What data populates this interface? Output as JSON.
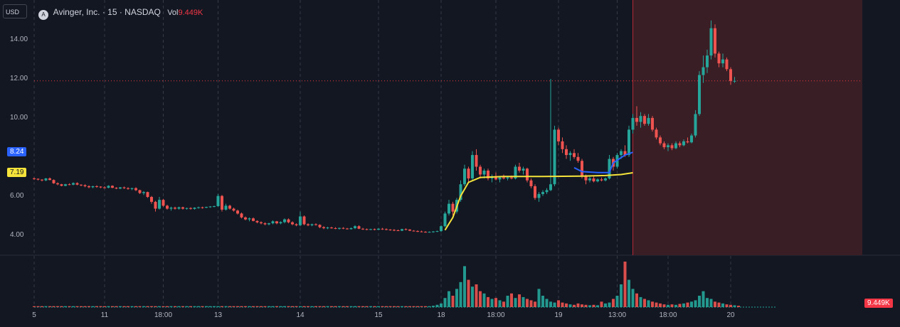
{
  "header": {
    "currency": "USD",
    "logo_letter": "A",
    "symbol_line": "Avinger, Inc. · 15 · NASDAQ",
    "vol_label": "Vol",
    "vol_value": "9.449K"
  },
  "colors": {
    "background": "#131722",
    "up": "#26a69a",
    "down": "#ef5350",
    "vwap_yellow": "#f5e33b",
    "vwap_blue": "#2962ff",
    "session_shade": "#3a1e26",
    "price_line": "#f23645"
  },
  "price_badges": [
    {
      "label": "8.24",
      "value": 8.24,
      "color": "#2962ff",
      "text_color": "#ffffff"
    },
    {
      "label": "7.19",
      "value": 7.19,
      "color": "#f5e33b",
      "text_color": "#131722"
    }
  ],
  "volume_badge": {
    "label": "9.449K",
    "color": "#f23645"
  },
  "chart_data": {
    "type": "candlestick",
    "price_axis": {
      "ticks": [
        "14.00",
        "12.00",
        "10.00",
        "6.00",
        "4.00"
      ],
      "ylim": [
        3.0,
        15.5
      ]
    },
    "time_axis": {
      "ticks": [
        {
          "label": "5",
          "i": 0
        },
        {
          "label": "11",
          "i": 18
        },
        {
          "label": "18:00",
          "i": 33
        },
        {
          "label": "13",
          "i": 47
        },
        {
          "label": "14",
          "i": 68
        },
        {
          "label": "15",
          "i": 88
        },
        {
          "label": "18",
          "i": 104
        },
        {
          "label": "18:00",
          "i": 118
        },
        {
          "label": "19",
          "i": 134
        },
        {
          "label": "13:00",
          "i": 149
        },
        {
          "label": "18:00",
          "i": 162
        },
        {
          "label": "20",
          "i": 178
        }
      ]
    },
    "current_price": 11.9,
    "extended_hours_start_index": 153,
    "series_vwap_yellow": [
      [
        105,
        4.25
      ],
      [
        107,
        4.9
      ],
      [
        109,
        6.0
      ],
      [
        111,
        6.7
      ],
      [
        114,
        6.95
      ],
      [
        120,
        7.0
      ],
      [
        130,
        7.0
      ],
      [
        140,
        7.02
      ],
      [
        146,
        7.05
      ],
      [
        150,
        7.1
      ],
      [
        153,
        7.19
      ]
    ],
    "series_vwap_blue": [
      [
        138,
        7.45
      ],
      [
        140,
        7.25
      ],
      [
        144,
        7.2
      ],
      [
        147,
        7.2
      ],
      [
        148,
        7.7
      ],
      [
        151,
        8.1
      ],
      [
        153,
        8.24
      ]
    ],
    "candles": [
      [
        6.9,
        6.95,
        6.82,
        6.88
      ],
      [
        6.88,
        6.9,
        6.8,
        6.84
      ],
      [
        6.84,
        6.86,
        6.75,
        6.8
      ],
      [
        6.8,
        6.92,
        6.76,
        6.9
      ],
      [
        6.9,
        6.95,
        6.8,
        6.82
      ],
      [
        6.82,
        6.85,
        6.62,
        6.65
      ],
      [
        6.65,
        6.7,
        6.55,
        6.6
      ],
      [
        6.6,
        6.62,
        6.5,
        6.52
      ],
      [
        6.52,
        6.62,
        6.5,
        6.6
      ],
      [
        6.6,
        6.65,
        6.55,
        6.58
      ],
      [
        6.58,
        6.7,
        6.55,
        6.66
      ],
      [
        6.66,
        6.7,
        6.55,
        6.58
      ],
      [
        6.58,
        6.6,
        6.5,
        6.55
      ],
      [
        6.55,
        6.6,
        6.45,
        6.5
      ],
      [
        6.5,
        6.55,
        6.4,
        6.45
      ],
      [
        6.45,
        6.52,
        6.4,
        6.5
      ],
      [
        6.5,
        6.55,
        6.42,
        6.48
      ],
      [
        6.48,
        6.5,
        6.4,
        6.44
      ],
      [
        6.44,
        6.5,
        6.38,
        6.42
      ],
      [
        6.42,
        6.55,
        6.4,
        6.52
      ],
      [
        6.52,
        6.55,
        6.4,
        6.42
      ],
      [
        6.42,
        6.45,
        6.35,
        6.38
      ],
      [
        6.38,
        6.46,
        6.35,
        6.44
      ],
      [
        6.44,
        6.48,
        6.36,
        6.4
      ],
      [
        6.4,
        6.45,
        6.32,
        6.36
      ],
      [
        6.36,
        6.42,
        6.3,
        6.4
      ],
      [
        6.4,
        6.45,
        6.25,
        6.3
      ],
      [
        6.3,
        6.32,
        6.1,
        6.15
      ],
      [
        6.15,
        6.25,
        6.05,
        6.2
      ],
      [
        6.2,
        6.22,
        5.9,
        5.95
      ],
      [
        5.95,
        6.0,
        5.6,
        5.7
      ],
      [
        5.7,
        5.75,
        5.2,
        5.35
      ],
      [
        5.35,
        5.95,
        5.3,
        5.8
      ],
      [
        5.8,
        5.85,
        5.45,
        5.5
      ],
      [
        5.5,
        5.55,
        5.3,
        5.35
      ],
      [
        5.35,
        5.45,
        5.25,
        5.4
      ],
      [
        5.4,
        5.45,
        5.3,
        5.35
      ],
      [
        5.35,
        5.45,
        5.3,
        5.42
      ],
      [
        5.42,
        5.45,
        5.3,
        5.35
      ],
      [
        5.35,
        5.4,
        5.3,
        5.38
      ],
      [
        5.38,
        5.42,
        5.3,
        5.34
      ],
      [
        5.34,
        5.42,
        5.3,
        5.4
      ],
      [
        5.4,
        5.45,
        5.35,
        5.42
      ],
      [
        5.42,
        5.45,
        5.35,
        5.4
      ],
      [
        5.4,
        5.45,
        5.38,
        5.44
      ],
      [
        5.44,
        5.48,
        5.4,
        5.46
      ],
      [
        5.46,
        5.5,
        5.42,
        5.48
      ],
      [
        5.48,
        6.1,
        5.45,
        6.0
      ],
      [
        6.0,
        6.05,
        5.2,
        5.3
      ],
      [
        5.3,
        5.6,
        5.25,
        5.5
      ],
      [
        5.5,
        5.55,
        5.3,
        5.35
      ],
      [
        5.35,
        5.4,
        5.2,
        5.25
      ],
      [
        5.25,
        5.3,
        5.05,
        5.1
      ],
      [
        5.1,
        5.15,
        4.85,
        4.9
      ],
      [
        4.9,
        4.95,
        4.75,
        4.8
      ],
      [
        4.8,
        4.9,
        4.7,
        4.85
      ],
      [
        4.85,
        4.9,
        4.7,
        4.72
      ],
      [
        4.72,
        4.75,
        4.6,
        4.65
      ],
      [
        4.65,
        4.7,
        4.55,
        4.6
      ],
      [
        4.6,
        4.65,
        4.5,
        4.55
      ],
      [
        4.55,
        4.62,
        4.5,
        4.6
      ],
      [
        4.6,
        4.75,
        4.55,
        4.7
      ],
      [
        4.7,
        4.72,
        4.55,
        4.6
      ],
      [
        4.6,
        4.7,
        4.55,
        4.66
      ],
      [
        4.66,
        4.85,
        4.6,
        4.8
      ],
      [
        4.8,
        4.85,
        4.6,
        4.65
      ],
      [
        4.65,
        4.7,
        4.5,
        4.55
      ],
      [
        4.55,
        4.6,
        4.45,
        4.5
      ],
      [
        4.5,
        5.2,
        4.45,
        4.95
      ],
      [
        4.95,
        5.0,
        4.5,
        4.55
      ],
      [
        4.55,
        4.6,
        4.45,
        4.5
      ],
      [
        4.5,
        4.58,
        4.45,
        4.55
      ],
      [
        4.55,
        4.6,
        4.48,
        4.52
      ],
      [
        4.52,
        4.55,
        4.35,
        4.4
      ],
      [
        4.4,
        4.45,
        4.3,
        4.35
      ],
      [
        4.35,
        4.42,
        4.3,
        4.38
      ],
      [
        4.38,
        4.42,
        4.32,
        4.35
      ],
      [
        4.35,
        4.4,
        4.3,
        4.32
      ],
      [
        4.32,
        4.38,
        4.28,
        4.36
      ],
      [
        4.36,
        4.4,
        4.3,
        4.33
      ],
      [
        4.33,
        4.36,
        4.28,
        4.3
      ],
      [
        4.3,
        4.38,
        4.28,
        4.35
      ],
      [
        4.35,
        4.5,
        4.3,
        4.45
      ],
      [
        4.45,
        4.5,
        4.3,
        4.32
      ],
      [
        4.32,
        4.36,
        4.26,
        4.3
      ],
      [
        4.3,
        4.33,
        4.25,
        4.28
      ],
      [
        4.28,
        4.32,
        4.25,
        4.3
      ],
      [
        4.3,
        4.33,
        4.24,
        4.27
      ],
      [
        4.27,
        4.35,
        4.25,
        4.32
      ],
      [
        4.32,
        4.36,
        4.26,
        4.3
      ],
      [
        4.3,
        4.34,
        4.24,
        4.28
      ],
      [
        4.28,
        4.3,
        4.22,
        4.26
      ],
      [
        4.26,
        4.3,
        4.2,
        4.24
      ],
      [
        4.24,
        4.28,
        4.2,
        4.22
      ],
      [
        4.22,
        4.32,
        4.2,
        4.3
      ],
      [
        4.3,
        4.34,
        4.24,
        4.28
      ],
      [
        4.28,
        4.3,
        4.2,
        4.22
      ],
      [
        4.22,
        4.25,
        4.18,
        4.2
      ],
      [
        4.2,
        4.24,
        4.15,
        4.18
      ],
      [
        4.18,
        4.22,
        4.14,
        4.16
      ],
      [
        4.16,
        4.2,
        4.12,
        4.15
      ],
      [
        4.15,
        4.18,
        4.12,
        4.16
      ],
      [
        4.16,
        4.2,
        4.12,
        4.18
      ],
      [
        4.18,
        4.22,
        4.15,
        4.2
      ],
      [
        4.2,
        4.5,
        4.15,
        4.45
      ],
      [
        4.45,
        5.2,
        4.4,
        5.1
      ],
      [
        5.1,
        5.8,
        5.0,
        5.6
      ],
      [
        5.6,
        5.7,
        5.0,
        5.2
      ],
      [
        5.2,
        5.9,
        5.1,
        5.8
      ],
      [
        5.8,
        6.8,
        5.7,
        6.6
      ],
      [
        6.6,
        7.6,
        6.5,
        7.4
      ],
      [
        7.4,
        7.5,
        6.7,
        6.9
      ],
      [
        6.9,
        8.3,
        6.8,
        8.1
      ],
      [
        8.1,
        8.4,
        7.3,
        7.5
      ],
      [
        7.5,
        7.6,
        6.9,
        7.1
      ],
      [
        7.1,
        7.4,
        6.9,
        7.3
      ],
      [
        7.3,
        7.4,
        6.8,
        6.9
      ],
      [
        6.9,
        7.1,
        6.7,
        7.0
      ],
      [
        7.0,
        7.2,
        6.8,
        6.85
      ],
      [
        6.85,
        7.0,
        6.7,
        6.95
      ],
      [
        6.95,
        7.1,
        6.85,
        6.9
      ],
      [
        6.9,
        7.0,
        6.8,
        6.95
      ],
      [
        6.95,
        7.05,
        6.85,
        6.9
      ],
      [
        6.9,
        7.6,
        6.85,
        7.5
      ],
      [
        7.5,
        7.7,
        7.2,
        7.3
      ],
      [
        7.3,
        7.5,
        7.1,
        7.4
      ],
      [
        7.4,
        7.45,
        6.7,
        6.8
      ],
      [
        6.8,
        6.9,
        6.4,
        6.5
      ],
      [
        6.5,
        6.6,
        5.8,
        5.9
      ],
      [
        5.9,
        6.2,
        5.7,
        6.1
      ],
      [
        6.1,
        6.3,
        6.0,
        6.2
      ],
      [
        6.2,
        6.4,
        6.1,
        6.3
      ],
      [
        6.3,
        12.0,
        6.25,
        6.6
      ],
      [
        6.6,
        9.6,
        6.5,
        9.4
      ],
      [
        9.4,
        9.5,
        8.6,
        8.8
      ],
      [
        8.8,
        9.0,
        8.2,
        8.4
      ],
      [
        8.4,
        8.6,
        7.9,
        8.1
      ],
      [
        8.1,
        8.3,
        7.8,
        8.2
      ],
      [
        8.2,
        8.4,
        7.9,
        8.0
      ],
      [
        8.0,
        8.2,
        7.7,
        7.8
      ],
      [
        7.8,
        7.9,
        6.9,
        7.0
      ],
      [
        7.0,
        7.1,
        6.6,
        6.8
      ],
      [
        6.8,
        7.0,
        6.7,
        6.9
      ],
      [
        6.9,
        7.0,
        6.7,
        6.75
      ],
      [
        6.75,
        6.9,
        6.7,
        6.85
      ],
      [
        6.85,
        6.95,
        6.75,
        6.8
      ],
      [
        6.8,
        6.95,
        6.75,
        6.9
      ],
      [
        6.9,
        8.1,
        6.85,
        7.9
      ],
      [
        7.9,
        8.0,
        7.3,
        7.5
      ],
      [
        7.5,
        8.2,
        7.4,
        8.1
      ],
      [
        8.1,
        8.4,
        7.9,
        8.3
      ],
      [
        8.3,
        8.6,
        8.0,
        8.1
      ],
      [
        8.1,
        9.6,
        8.0,
        9.4
      ],
      [
        9.4,
        10.2,
        9.2,
        10.0
      ],
      [
        10.0,
        10.6,
        9.6,
        9.8
      ],
      [
        9.8,
        10.3,
        9.5,
        10.1
      ],
      [
        10.1,
        10.2,
        9.6,
        9.7
      ],
      [
        9.7,
        10.2,
        9.6,
        10.0
      ],
      [
        10.0,
        10.1,
        9.3,
        9.4
      ],
      [
        9.4,
        9.5,
        8.9,
        9.0
      ],
      [
        9.0,
        9.1,
        8.6,
        8.7
      ],
      [
        8.7,
        8.8,
        8.4,
        8.5
      ],
      [
        8.5,
        8.7,
        8.3,
        8.6
      ],
      [
        8.6,
        8.7,
        8.35,
        8.45
      ],
      [
        8.45,
        8.8,
        8.4,
        8.7
      ],
      [
        8.7,
        8.8,
        8.5,
        8.6
      ],
      [
        8.6,
        8.9,
        8.55,
        8.8
      ],
      [
        8.8,
        9.0,
        8.7,
        8.75
      ],
      [
        8.75,
        9.2,
        8.7,
        9.1
      ],
      [
        9.1,
        10.4,
        9.0,
        10.2
      ],
      [
        10.2,
        12.4,
        10.1,
        12.2
      ],
      [
        12.2,
        13.2,
        11.8,
        12.6
      ],
      [
        12.6,
        13.5,
        12.3,
        13.2
      ],
      [
        13.2,
        15.0,
        13.0,
        14.6
      ],
      [
        14.6,
        14.8,
        13.1,
        13.3
      ],
      [
        13.3,
        13.4,
        12.6,
        12.8
      ],
      [
        12.8,
        13.3,
        12.6,
        13.0
      ],
      [
        13.0,
        13.1,
        12.4,
        12.5
      ],
      [
        12.5,
        12.6,
        11.7,
        11.9
      ],
      [
        11.9,
        12.1,
        11.8,
        11.9
      ]
    ],
    "volumes": [
      0.02,
      0.02,
      0.02,
      0.02,
      0.02,
      0.02,
      0.02,
      0.02,
      0.02,
      0.02,
      0.02,
      0.02,
      0.02,
      0.02,
      0.02,
      0.02,
      0.02,
      0.02,
      0.02,
      0.02,
      0.02,
      0.02,
      0.02,
      0.02,
      0.02,
      0.02,
      0.02,
      0.02,
      0.02,
      0.02,
      0.02,
      0.02,
      0.02,
      0.02,
      0.02,
      0.02,
      0.02,
      0.02,
      0.02,
      0.02,
      0.02,
      0.02,
      0.02,
      0.02,
      0.02,
      0.02,
      0.02,
      0.02,
      0.02,
      0.02,
      0.02,
      0.02,
      0.02,
      0.02,
      0.02,
      0.02,
      0.02,
      0.02,
      0.02,
      0.02,
      0.02,
      0.02,
      0.02,
      0.02,
      0.02,
      0.02,
      0.02,
      0.02,
      0.02,
      0.02,
      0.02,
      0.02,
      0.02,
      0.02,
      0.02,
      0.02,
      0.02,
      0.02,
      0.02,
      0.02,
      0.02,
      0.02,
      0.02,
      0.02,
      0.02,
      0.02,
      0.02,
      0.02,
      0.02,
      0.02,
      0.02,
      0.02,
      0.02,
      0.02,
      0.02,
      0.02,
      0.02,
      0.02,
      0.02,
      0.02,
      0.02,
      0.02,
      0.03,
      0.05,
      0.08,
      0.2,
      0.35,
      0.25,
      0.4,
      0.55,
      0.9,
      0.6,
      0.45,
      0.5,
      0.35,
      0.3,
      0.22,
      0.18,
      0.2,
      0.15,
      0.12,
      0.25,
      0.3,
      0.2,
      0.28,
      0.22,
      0.18,
      0.15,
      0.12,
      0.4,
      0.25,
      0.18,
      0.12,
      0.1,
      0.15,
      0.1,
      0.08,
      0.06,
      0.05,
      0.08,
      0.06,
      0.05,
      0.04,
      0.05,
      0.04,
      0.12,
      0.08,
      0.1,
      0.18,
      0.25,
      0.5,
      1.0,
      0.6,
      0.4,
      0.3,
      0.22,
      0.18,
      0.15,
      0.12,
      0.1,
      0.08,
      0.06,
      0.05,
      0.06,
      0.05,
      0.07,
      0.08,
      0.1,
      0.12,
      0.15,
      0.25,
      0.35,
      0.2,
      0.18,
      0.12,
      0.1,
      0.08,
      0.06,
      0.05,
      0.04,
      0.03
    ]
  }
}
